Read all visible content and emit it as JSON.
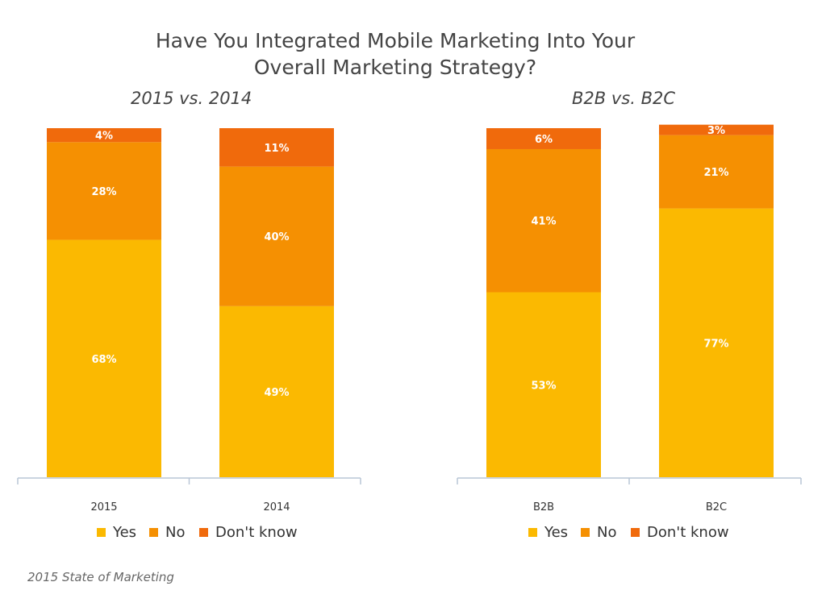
{
  "title": {
    "line1": "Have You Integrated Mobile Marketing Into Your",
    "line2": "Overall Marketing Strategy?"
  },
  "source": "2015 State of Marketing",
  "colors": {
    "yes": "#fbb901",
    "no": "#f59002",
    "dont_know": "#f06a0c",
    "axis": "#b9c6d6"
  },
  "chart_data": [
    {
      "type": "bar",
      "stacked": true,
      "title": "2015 vs. 2014",
      "categories": [
        "2015",
        "2014"
      ],
      "series": [
        {
          "name": "Yes",
          "values": [
            68,
            49
          ],
          "labels": [
            "68%",
            "49%"
          ]
        },
        {
          "name": "No",
          "values": [
            28,
            40
          ],
          "labels": [
            "28%",
            "40%"
          ]
        },
        {
          "name": "Don't know",
          "values": [
            4,
            11
          ],
          "labels": [
            "4%",
            "11%"
          ]
        }
      ],
      "ylim": [
        0,
        100
      ],
      "legend": "bottom",
      "grid": false
    },
    {
      "type": "bar",
      "stacked": true,
      "title": "B2B vs. B2C",
      "categories": [
        "B2B",
        "B2C"
      ],
      "series": [
        {
          "name": "Yes",
          "values": [
            53,
            77
          ],
          "labels": [
            "53%",
            "77%"
          ]
        },
        {
          "name": "No",
          "values": [
            41,
            21
          ],
          "labels": [
            "41%",
            "21%"
          ]
        },
        {
          "name": "Don't know",
          "values": [
            6,
            3
          ],
          "labels": [
            "6%",
            "3%"
          ]
        }
      ],
      "ylim": [
        0,
        100
      ],
      "legend": "bottom",
      "grid": false
    }
  ]
}
